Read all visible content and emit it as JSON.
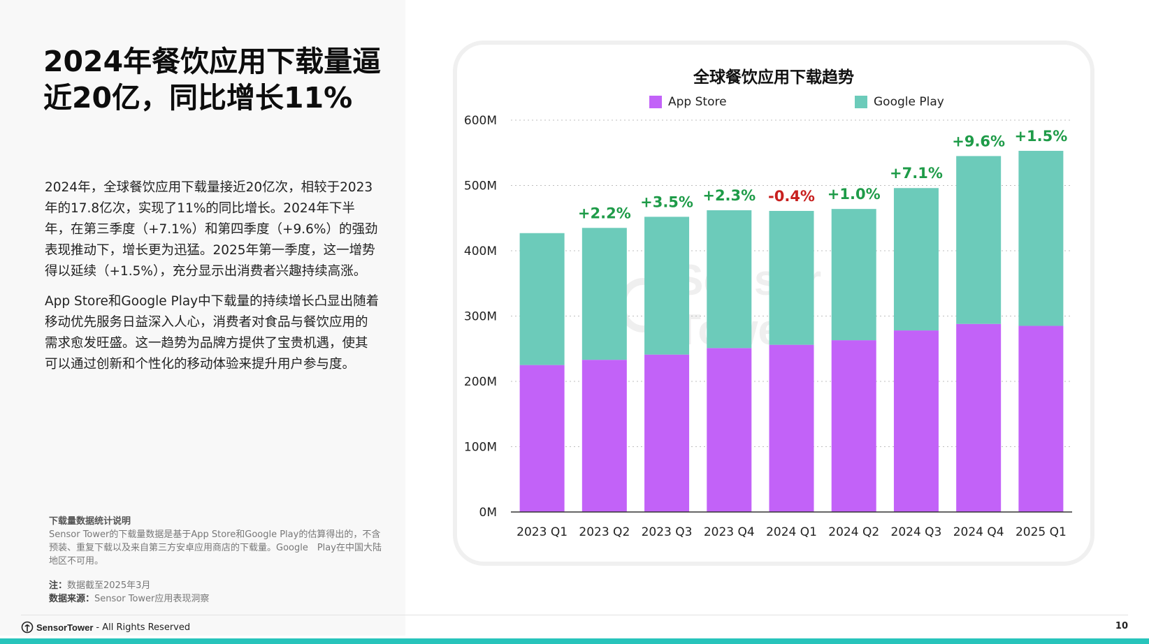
{
  "page": {
    "title_line1": "2024年餐饮应用下载量逼",
    "title_line2": "近20亿，同比增长11%",
    "paragraph1": "2024年，全球餐饮应用下载量接近20亿次，相较于2023年的17.8亿次，实现了11%的同比增长。2024年下半年，在第三季度（+7.1%）和第四季度（+9.6%）的强劲表现推动下，增长更为迅猛。2025年第一季度，这一增势得以延续（+1.5%），充分显示出消费者兴趣持续高涨。",
    "paragraph2": "App Store和Google Play中下载量的持续增长凸显出随着移动优先服务日益深入人心，消费者对食品与餐饮应用的需求愈发旺盛。这一趋势为品牌方提供了宝贵机遇，使其可以通过创新和个性化的移动体验来提升用户参与度。",
    "notes_heading": "下载量数据统计说明",
    "notes_body": "Sensor Tower的下载量数据是基于App Store和Google Play的估算得出的，不含预装、重复下载以及来自第三方安卓应用商店的下载量。Google　Play在中国大陆地区不可用。",
    "note_label": "注：",
    "note_value": "数据截至2025年3月",
    "source_label": "数据来源：",
    "source_value": "Sensor Tower应用表现洞察",
    "footer_brand": "SensorTower",
    "footer_rights": "- All Rights Reserved",
    "page_number": "10",
    "watermark_text": "Sensor Tower"
  },
  "colors": {
    "app_store": "#c262f8",
    "google_play": "#6ccbba",
    "positive": "#1e9b48",
    "negative": "#c8201f",
    "accent_bar": "#27c4bb"
  },
  "chart_data": {
    "type": "bar",
    "stacked": true,
    "title": "全球餐饮应用下载趋势",
    "categories": [
      "2023 Q1",
      "2023 Q2",
      "2023 Q3",
      "2023 Q4",
      "2024 Q1",
      "2024 Q2",
      "2024 Q3",
      "2024 Q4",
      "2025 Q1"
    ],
    "series": [
      {
        "name": "App Store",
        "values": [
          225,
          233,
          241,
          251,
          256,
          263,
          278,
          288,
          285
        ]
      },
      {
        "name": "Google Play",
        "values": [
          202,
          202,
          211,
          211,
          205,
          201,
          218,
          257,
          268
        ]
      }
    ],
    "growth_labels": [
      "",
      "+2.2%",
      "+3.5%",
      "+2.3%",
      "-0.4%",
      "+1.0%",
      "+7.1%",
      "+9.6%",
      "+1.5%"
    ],
    "ylim": [
      0,
      600
    ],
    "yticks": [
      "0M",
      "100M",
      "200M",
      "300M",
      "400M",
      "500M",
      "600M"
    ],
    "ytick_values": [
      0,
      100,
      200,
      300,
      400,
      500,
      600
    ],
    "grid": true,
    "legend_position": "top"
  }
}
